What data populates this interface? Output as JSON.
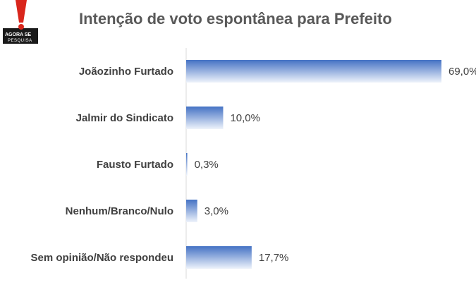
{
  "logo": {
    "text": "AGORA SE",
    "text_accent": "SE",
    "subtext": "PESQUISA"
  },
  "chart_data": {
    "type": "bar",
    "orientation": "horizontal",
    "title": "Intenção de voto espontânea para Prefeito",
    "categories": [
      "Joãozinho Furtado",
      "Jalmir do Sindicato",
      "Fausto Furtado",
      "Nenhum/Branco/Nulo",
      "Sem opinião/Não respondeu"
    ],
    "values": [
      69.0,
      10.0,
      0.3,
      3.0,
      17.7
    ],
    "value_labels": [
      "69,0%",
      "10,0%",
      "0,3%",
      "3,0%",
      "17,7%"
    ],
    "bar_color": "#4472c4",
    "grid": false,
    "legend": "none",
    "xlim": [
      0,
      69.0
    ]
  }
}
